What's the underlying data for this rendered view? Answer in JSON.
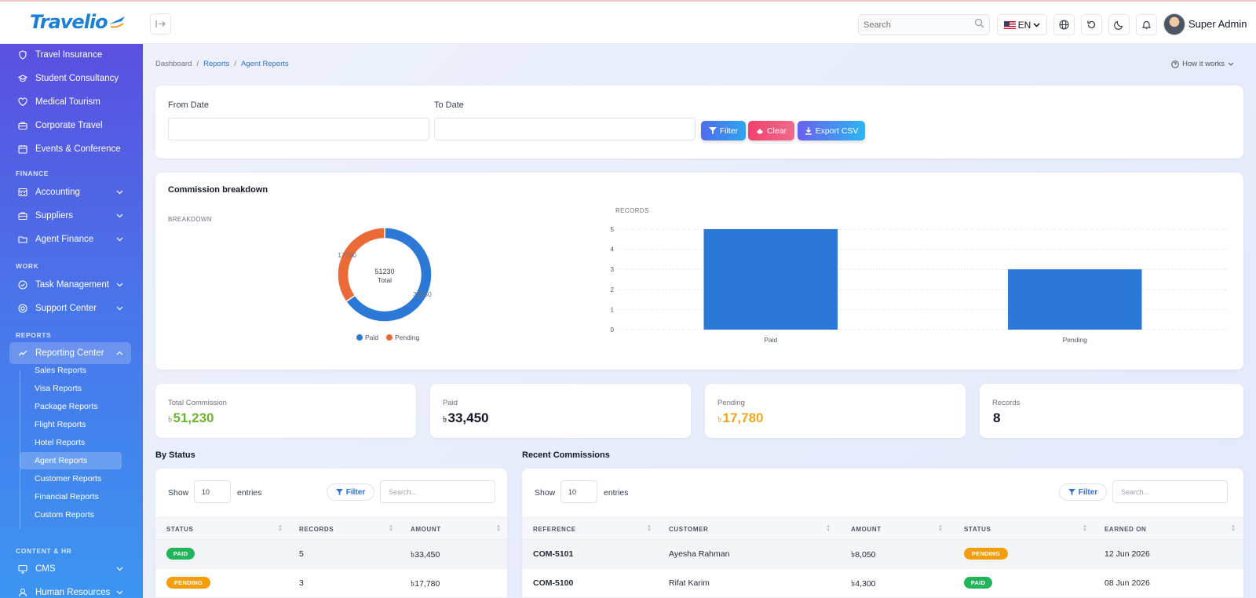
{
  "app": {
    "logo": "Travelio",
    "user_name": "Super Admin"
  },
  "topbar": {
    "search_placeholder": "Search",
    "lang": "EN"
  },
  "sidebar": {
    "items_top": [
      {
        "label": "Travel Insurance",
        "icon": "shield-icon"
      },
      {
        "label": "Student Consultancy",
        "icon": "graduation-cap-icon"
      },
      {
        "label": "Medical Tourism",
        "icon": "heart-icon"
      },
      {
        "label": "Corporate Travel",
        "icon": "briefcase-icon"
      },
      {
        "label": "Events & Conference",
        "icon": "calendar-icon"
      }
    ],
    "sections": [
      "FINANCE",
      "WORK",
      "REPORTS",
      "CONTENT & HR"
    ],
    "finance": [
      {
        "label": "Accounting",
        "icon": "ledger-icon"
      },
      {
        "label": "Suppliers",
        "icon": "briefcase-icon"
      },
      {
        "label": "Agent Finance",
        "icon": "folder-icon"
      }
    ],
    "work": [
      {
        "label": "Task Management",
        "icon": "check-circle-icon"
      },
      {
        "label": "Support Center",
        "icon": "lifebuoy-icon"
      }
    ],
    "reports": {
      "label": "Reporting Center",
      "icon": "trending-icon",
      "sub": [
        "Sales Reports",
        "Visa Reports",
        "Package Reports",
        "Flight Reports",
        "Hotel Reports",
        "Agent Reports",
        "Customer Reports",
        "Financial Reports",
        "Custom Reports"
      ],
      "active_sub": "Agent Reports"
    },
    "content": [
      {
        "label": "CMS",
        "icon": "monitor-icon"
      },
      {
        "label": "Human Resources",
        "icon": "user-icon"
      }
    ]
  },
  "breadcrumb": {
    "home": "Dashboard",
    "sep": "/",
    "parent": "Reports",
    "current": "Agent Reports"
  },
  "howto": "How it works",
  "filters": {
    "from_label": "From Date",
    "to_label": "To Date",
    "filter_btn": "Filter",
    "clear_btn": "Clear",
    "export_btn": "Export CSV"
  },
  "commission": {
    "title": "Commission breakdown",
    "donut_label": "BREAKDOWN",
    "bar_label": "RECORDS"
  },
  "chart_data": [
    {
      "type": "pie",
      "categories": [
        "Paid",
        "Pending"
      ],
      "values": [
        33450,
        17780
      ],
      "value_labels": [
        "33450",
        "17780"
      ],
      "center_value": "51230",
      "center_label": "Total",
      "legend": "bottom",
      "colors": [
        "#2b78d6",
        "#eb6a37"
      ]
    },
    {
      "type": "bar",
      "categories": [
        "Paid",
        "Pending"
      ],
      "values": [
        5,
        3
      ],
      "ylim": [
        0,
        5
      ],
      "yticks": [
        "0",
        "1",
        "2",
        "3",
        "4",
        "5"
      ],
      "grid": true,
      "color": "#2b78d6"
    }
  ],
  "stats": [
    {
      "label": "Total Commission",
      "currency": "৳",
      "value": "51,230",
      "color": "#6ab42d"
    },
    {
      "label": "Paid",
      "currency": "৳",
      "value": "33,450",
      "color": "#111827"
    },
    {
      "label": "Pending",
      "currency": "৳",
      "value": "17,780",
      "color": "#f0a61a"
    },
    {
      "label": "Records",
      "currency": "",
      "value": "8",
      "color": "#111827"
    }
  ],
  "by_status": {
    "title": "By Status",
    "show": "Show",
    "entries_value": "10",
    "entries": "entries",
    "filter": "Filter",
    "search_placeholder": "Search...",
    "columns": [
      "STATUS",
      "RECORDS",
      "AMOUNT"
    ],
    "rows": [
      {
        "status": "PAID",
        "status_color": "#22b45a",
        "records": "5",
        "amount": "৳33,450"
      },
      {
        "status": "PENDING",
        "status_color": "#f59e0b",
        "records": "3",
        "amount": "৳17,780"
      }
    ]
  },
  "recent": {
    "title": "Recent Commissions",
    "show": "Show",
    "entries_value": "10",
    "entries": "entries",
    "filter": "Filter",
    "search_placeholder": "Search...",
    "columns": [
      "REFERENCE",
      "CUSTOMER",
      "AMOUNT",
      "STATUS",
      "EARNED ON"
    ],
    "rows": [
      {
        "reference": "COM-5101",
        "customer": "Ayesha Rahman",
        "amount": "৳8,050",
        "status": "PENDING",
        "status_color": "#f59e0b",
        "earned": "12 Jun 2026"
      },
      {
        "reference": "COM-5100",
        "customer": "Rifat Karim",
        "amount": "৳4,300",
        "status": "PAID",
        "status_color": "#22b45a",
        "earned": "08 Jun 2026"
      }
    ]
  }
}
